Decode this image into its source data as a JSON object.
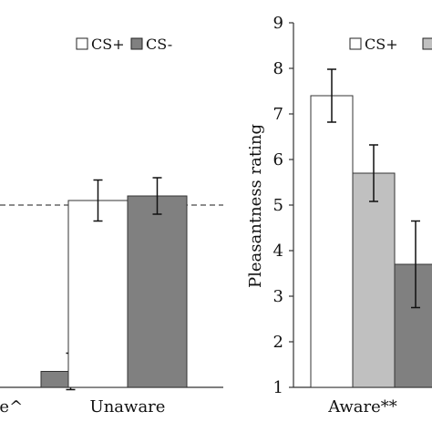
{
  "chart_data": [
    {
      "type": "bar",
      "categories": [
        "re^",
        "Unaware"
      ],
      "series": [
        {
          "name": "CS+",
          "values": [
            null,
            5.1
          ],
          "errors": [
            null,
            0.45
          ]
        },
        {
          "name": "CS-",
          "values": [
            1.35,
            5.2
          ],
          "errors": [
            0.4,
            0.4
          ]
        }
      ],
      "ylim": [
        1,
        9
      ],
      "reference_line": 5.0,
      "legend": {
        "placement": "top-right",
        "entries": [
          "CS+",
          "CS-"
        ]
      },
      "colors": {
        "CS+": "#ffffff",
        "CS-": "#808080"
      }
    },
    {
      "type": "bar",
      "categories": [
        "Aware**"
      ],
      "series": [
        {
          "name": "CS+",
          "values": [
            7.4
          ],
          "errors": [
            0.58
          ]
        },
        {
          "name": "",
          "values": [
            5.7
          ],
          "errors": [
            0.62
          ]
        },
        {
          "name": "",
          "values": [
            3.7
          ],
          "errors": [
            0.95
          ]
        }
      ],
      "ylabel": "Pleasantness rating",
      "ylim": [
        1,
        9
      ],
      "yticks": [
        "1",
        "2",
        "3",
        "4",
        "5",
        "6",
        "7",
        "8",
        "9"
      ],
      "legend": {
        "placement": "top-right",
        "entries": [
          "CS+"
        ]
      },
      "colors": [
        "#ffffff",
        "#c0c0c0",
        "#808080"
      ]
    }
  ]
}
